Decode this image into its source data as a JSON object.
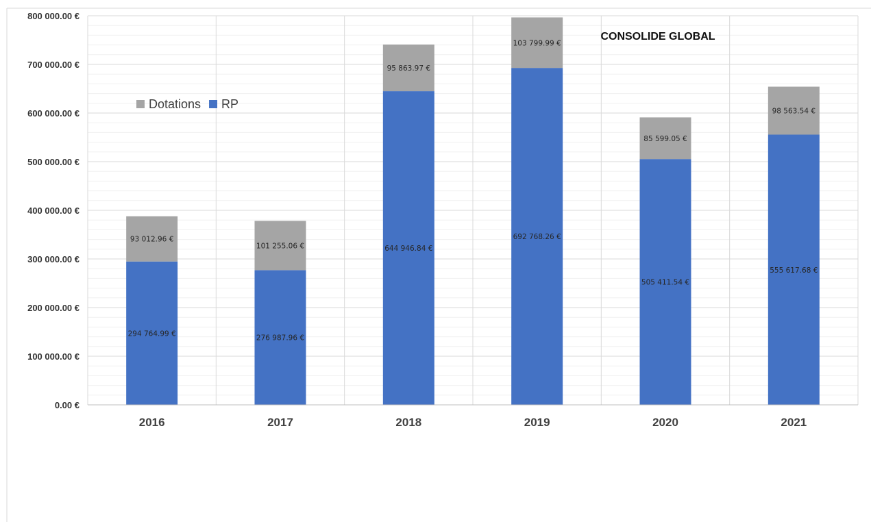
{
  "chart_data": {
    "type": "bar",
    "stacked": true,
    "title": "CONSOLIDE GLOBAL",
    "categories": [
      "2016",
      "2017",
      "2018",
      "2019",
      "2020",
      "2021"
    ],
    "series": [
      {
        "name": "RP",
        "color": "#4472C4",
        "values": [
          294764.99,
          276987.96,
          644946.84,
          692768.26,
          505411.54,
          555617.68
        ],
        "labels": [
          "294 764.99 €",
          "276 987.96 €",
          "644 946.84 €",
          "692 768.26 €",
          "505 411.54 €",
          "555 617.68 €"
        ]
      },
      {
        "name": "Dotations",
        "color": "#A5A5A5",
        "values": [
          93012.96,
          101255.06,
          95863.97,
          103799.99,
          85599.05,
          98563.54
        ],
        "labels": [
          "93 012.96 €",
          "101 255.06 €",
          "95 863.97 €",
          "103 799.99 €",
          "85 599.05 €",
          "98 563.54 €"
        ]
      }
    ],
    "legend": {
      "position": "upper-left",
      "items": [
        {
          "name": "Dotations",
          "color": "#A5A5A5"
        },
        {
          "name": "RP",
          "color": "#4472C4"
        }
      ]
    },
    "ylim": [
      0,
      800000
    ],
    "yticks": [
      0,
      100000,
      200000,
      300000,
      400000,
      500000,
      600000,
      700000,
      800000
    ],
    "ytick_labels": [
      "0.00 €",
      "100 000.00 €",
      "200 000.00 €",
      "300 000.00 €",
      "400 000.00 €",
      "500 000.00 €",
      "600 000.00 €",
      "700 000.00 €",
      "800 000.00 €"
    ],
    "grid": true,
    "xlabel": "",
    "ylabel": ""
  }
}
